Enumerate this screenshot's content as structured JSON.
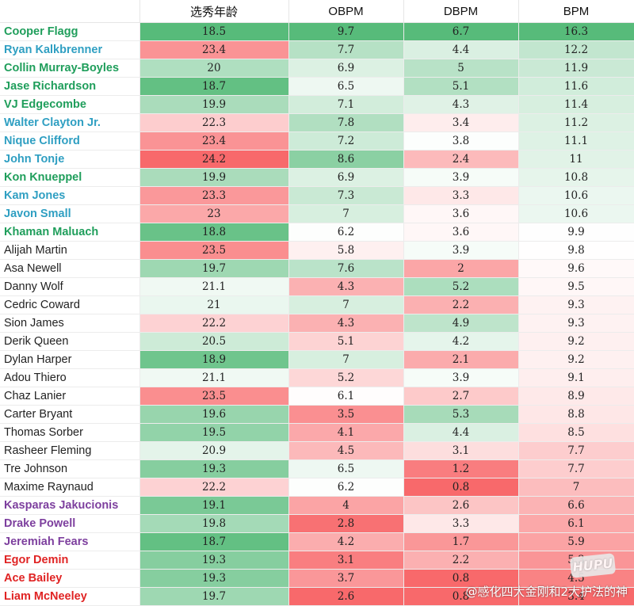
{
  "headers": [
    "",
    "选秀年龄",
    "OBPM",
    "DBPM",
    "BPM"
  ],
  "rows": [
    {
      "name": "Cooper Flagg",
      "tier": "green",
      "age": "18.5",
      "obpm": "9.7",
      "dbpm": "6.7",
      "bpm": "16.3"
    },
    {
      "name": "Ryan Kalkbrenner",
      "tier": "cyan",
      "age": "23.4",
      "obpm": "7.7",
      "dbpm": "4.4",
      "bpm": "12.2"
    },
    {
      "name": "Collin Murray-Boyles",
      "tier": "green",
      "age": "20",
      "obpm": "6.9",
      "dbpm": "5",
      "bpm": "11.9"
    },
    {
      "name": "Jase Richardson",
      "tier": "green",
      "age": "18.7",
      "obpm": "6.5",
      "dbpm": "5.1",
      "bpm": "11.6"
    },
    {
      "name": "VJ Edgecombe",
      "tier": "green",
      "age": "19.9",
      "obpm": "7.1",
      "dbpm": "4.3",
      "bpm": "11.4"
    },
    {
      "name": "Walter Clayton Jr.",
      "tier": "cyan",
      "age": "22.3",
      "obpm": "7.8",
      "dbpm": "3.4",
      "bpm": "11.2"
    },
    {
      "name": "Nique Clifford",
      "tier": "cyan",
      "age": "23.4",
      "obpm": "7.2",
      "dbpm": "3.8",
      "bpm": "11.1"
    },
    {
      "name": "John Tonje",
      "tier": "cyan",
      "age": "24.2",
      "obpm": "8.6",
      "dbpm": "2.4",
      "bpm": "11"
    },
    {
      "name": "Kon Knueppel",
      "tier": "green",
      "age": "19.9",
      "obpm": "6.9",
      "dbpm": "3.9",
      "bpm": "10.8"
    },
    {
      "name": "Kam Jones",
      "tier": "cyan",
      "age": "23.3",
      "obpm": "7.3",
      "dbpm": "3.3",
      "bpm": "10.6"
    },
    {
      "name": "Javon Small",
      "tier": "cyan",
      "age": "23",
      "obpm": "7",
      "dbpm": "3.6",
      "bpm": "10.6"
    },
    {
      "name": "Khaman Maluach",
      "tier": "green",
      "age": "18.8",
      "obpm": "6.2",
      "dbpm": "3.6",
      "bpm": "9.9"
    },
    {
      "name": "Alijah Martin",
      "tier": "black",
      "age": "23.5",
      "obpm": "5.8",
      "dbpm": "3.9",
      "bpm": "9.8"
    },
    {
      "name": "Asa Newell",
      "tier": "black",
      "age": "19.7",
      "obpm": "7.6",
      "dbpm": "2",
      "bpm": "9.6"
    },
    {
      "name": "Danny Wolf",
      "tier": "black",
      "age": "21.1",
      "obpm": "4.3",
      "dbpm": "5.2",
      "bpm": "9.5"
    },
    {
      "name": "Cedric Coward",
      "tier": "black",
      "age": "21",
      "obpm": "7",
      "dbpm": "2.2",
      "bpm": "9.3"
    },
    {
      "name": "Sion James",
      "tier": "black",
      "age": "22.2",
      "obpm": "4.3",
      "dbpm": "4.9",
      "bpm": "9.3"
    },
    {
      "name": "Derik Queen",
      "tier": "black",
      "age": "20.5",
      "obpm": "5.1",
      "dbpm": "4.2",
      "bpm": "9.2"
    },
    {
      "name": "Dylan Harper",
      "tier": "black",
      "age": "18.9",
      "obpm": "7",
      "dbpm": "2.1",
      "bpm": "9.2"
    },
    {
      "name": "Adou Thiero",
      "tier": "black",
      "age": "21.1",
      "obpm": "5.2",
      "dbpm": "3.9",
      "bpm": "9.1"
    },
    {
      "name": "Chaz Lanier",
      "tier": "black",
      "age": "23.5",
      "obpm": "6.1",
      "dbpm": "2.7",
      "bpm": "8.9"
    },
    {
      "name": "Carter Bryant",
      "tier": "black",
      "age": "19.6",
      "obpm": "3.5",
      "dbpm": "5.3",
      "bpm": "8.8"
    },
    {
      "name": "Thomas Sorber",
      "tier": "black",
      "age": "19.5",
      "obpm": "4.1",
      "dbpm": "4.4",
      "bpm": "8.5"
    },
    {
      "name": "Rasheer Fleming",
      "tier": "black",
      "age": "20.9",
      "obpm": "4.5",
      "dbpm": "3.1",
      "bpm": "7.7"
    },
    {
      "name": "Tre Johnson",
      "tier": "black",
      "age": "19.3",
      "obpm": "6.5",
      "dbpm": "1.2",
      "bpm": "7.7"
    },
    {
      "name": "Maxime Raynaud",
      "tier": "black",
      "age": "22.2",
      "obpm": "6.2",
      "dbpm": "0.8",
      "bpm": "7"
    },
    {
      "name": "Kasparas Jakucionis",
      "tier": "purple",
      "age": "19.1",
      "obpm": "4",
      "dbpm": "2.6",
      "bpm": "6.6"
    },
    {
      "name": "Drake Powell",
      "tier": "purple",
      "age": "19.8",
      "obpm": "2.8",
      "dbpm": "3.3",
      "bpm": "6.1"
    },
    {
      "name": "Jeremiah Fears",
      "tier": "purple",
      "age": "18.7",
      "obpm": "4.2",
      "dbpm": "1.7",
      "bpm": "5.9"
    },
    {
      "name": "Egor Demin",
      "tier": "red",
      "age": "19.3",
      "obpm": "3.1",
      "dbpm": "2.2",
      "bpm": "5.3"
    },
    {
      "name": "Ace Bailey",
      "tier": "red",
      "age": "19.3",
      "obpm": "3.7",
      "dbpm": "0.8",
      "bpm": "4.5"
    },
    {
      "name": "Liam McNeeley",
      "tier": "red",
      "age": "19.7",
      "obpm": "2.6",
      "dbpm": "0.8",
      "bpm": "3.4"
    }
  ],
  "watermark": "@感化四大金刚和2大护法的神",
  "logo_text": "HUPU",
  "colors": {
    "green": "#57bb7a",
    "white": "#ffffff",
    "red": "#f8696b"
  }
}
